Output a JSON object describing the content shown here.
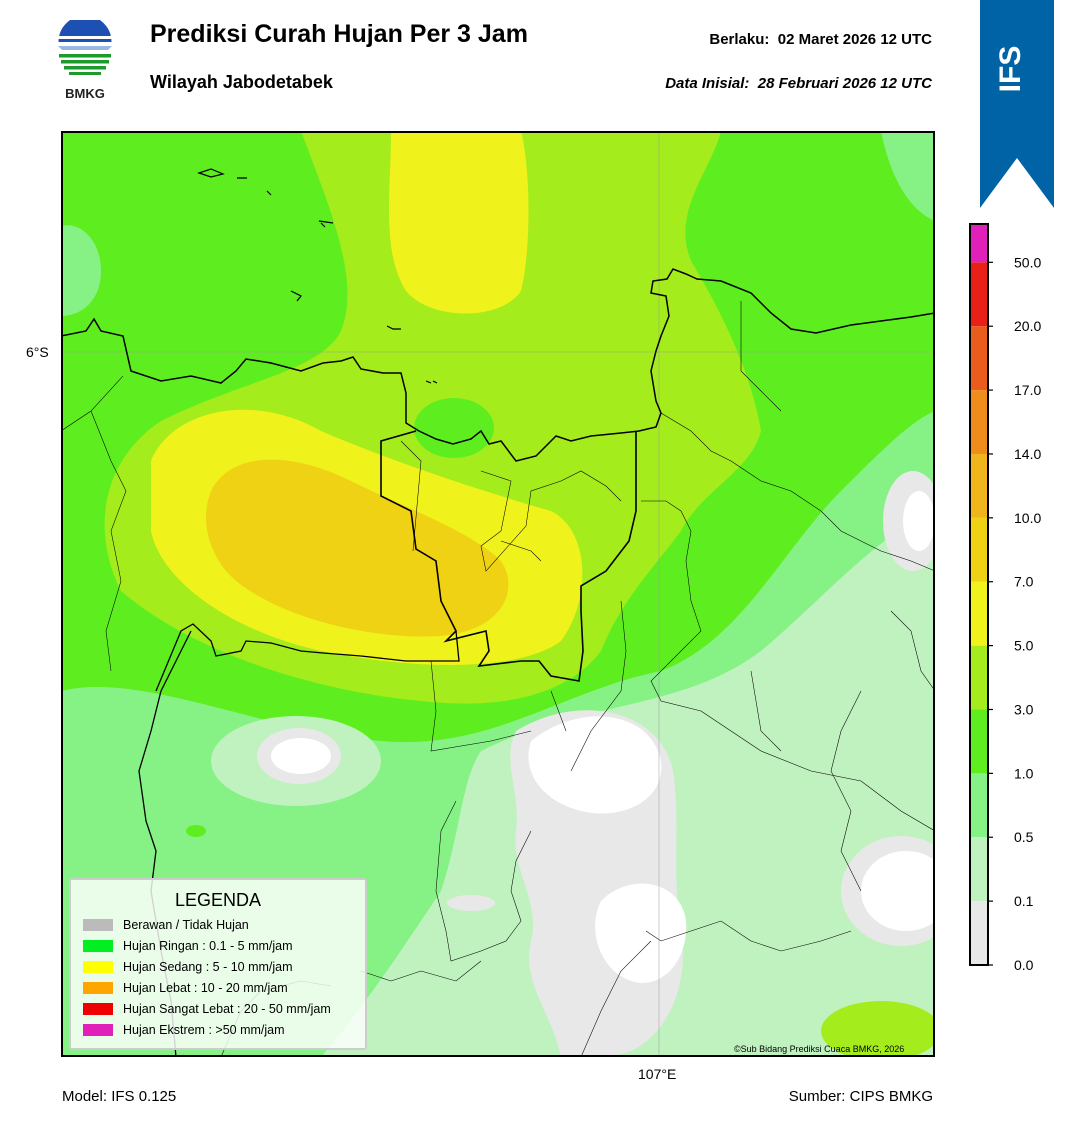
{
  "header": {
    "logo_text": "BMKG",
    "title": "Prediksi Curah Hujan Per 3 Jam",
    "subtitle": "Wilayah Jabodetabek",
    "valid_label": "Berlaku:",
    "valid_value": "02 Maret 2026 12 UTC",
    "init_label": "Data Inisial:",
    "init_value": "28 Februari 2026 12 UTC",
    "ribbon_text": "IFS",
    "ribbon_color": "#0063a5"
  },
  "map": {
    "lat_label": "6°S",
    "lon_label": "107°E",
    "credit": "©Sub Bidang Prediksi Cuaca BMKG, 2026",
    "gridlines": true
  },
  "colorbar": {
    "ticks": [
      "0.0",
      "0.1",
      "0.5",
      "1.0",
      "3.0",
      "5.0",
      "7.0",
      "10.0",
      "14.0",
      "17.0",
      "20.0",
      "50.0"
    ],
    "colors": [
      "#e8e8e8",
      "#c0f2c0",
      "#86f286",
      "#5eee20",
      "#a4ec1c",
      "#f0f21c",
      "#f0d214",
      "#f0b41c",
      "#ee8c1c",
      "#ea5c1c",
      "#e82018",
      "#e020b8"
    ]
  },
  "legend": {
    "title": "LEGENDA",
    "items": [
      {
        "label": "Berawan / Tidak Hujan",
        "color": "#bbbbbb"
      },
      {
        "label": "Hujan Ringan : 0.1 - 5 mm/jam",
        "color": "#00ee22"
      },
      {
        "label": "Hujan Sedang : 5 - 10 mm/jam",
        "color": "#ffff00"
      },
      {
        "label": "Hujan Lebat : 10 - 20 mm/jam",
        "color": "#ffa500"
      },
      {
        "label": "Hujan Sangat Lebat : 20 - 50 mm/jam",
        "color": "#ee0000"
      },
      {
        "label": "Hujan Ekstrem : >50 mm/jam",
        "color": "#e020b8"
      }
    ]
  },
  "footer": {
    "model": "Model: IFS 0.125",
    "source": "Sumber: CIPS BMKG"
  }
}
